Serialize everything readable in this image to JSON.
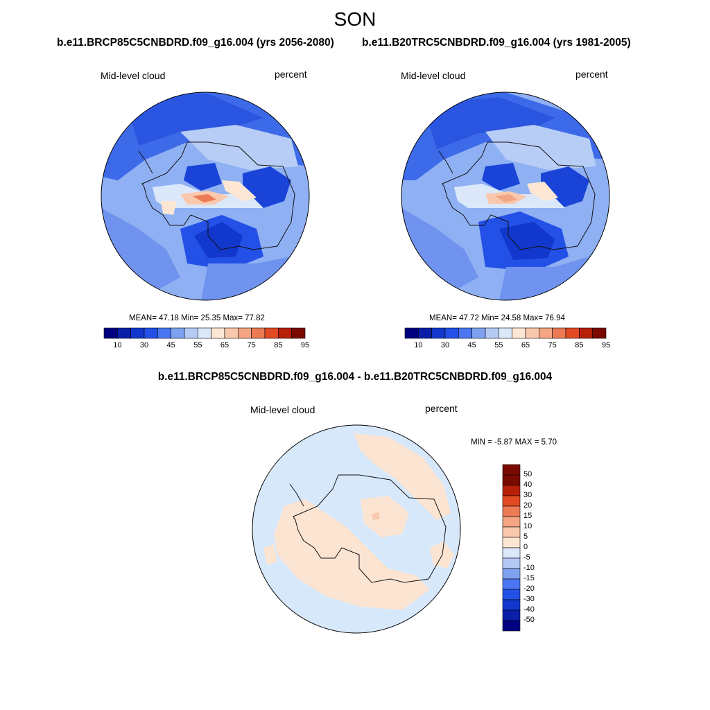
{
  "figure": {
    "season": "SON",
    "case_left": "b.e11.BRCP85C5CNBDRD.f09_g16.004 (yrs 2056-2080)",
    "case_right": "b.e11.B20TRC5CNBDRD.f09_g16.004 (yrs 1981-2005)",
    "diff_title": "b.e11.BRCP85C5CNBDRD.f09_g16.004 - b.e11.B20TRC5CNBDRD.f09_g16.004"
  },
  "panels": [
    {
      "variable": "Mid-level cloud",
      "units": "percent",
      "stats": "MEAN=  47.18  Min=  25.35  Max=  77.82",
      "colorbar_ticks": [
        "10",
        "30",
        "45",
        "55",
        "65",
        "75",
        "85",
        "95"
      ]
    },
    {
      "variable": "Mid-level cloud",
      "units": "percent",
      "stats": "MEAN=  47.72  Min=  24.58  Max=  76.94",
      "colorbar_ticks": [
        "10",
        "30",
        "45",
        "55",
        "65",
        "75",
        "85",
        "95"
      ]
    },
    {
      "variable": "Mid-level cloud",
      "units": "percent",
      "stats": "MIN =  -5.87 MAX =   5.70",
      "colorbar_ticks": [
        "50",
        "40",
        "30",
        "20",
        "15",
        "10",
        "5",
        "0",
        "-5",
        "-10",
        "-15",
        "-20",
        "-30",
        "-40",
        "-50"
      ]
    }
  ],
  "colors": {
    "abs_scale": [
      "#000080",
      "#0a1fa8",
      "#1237cc",
      "#2350e6",
      "#4a76f2",
      "#7fa2f0",
      "#b4c9f4",
      "#dbe8fa",
      "#fde7d4",
      "#f9c8ad",
      "#f3a584",
      "#ec7a55",
      "#e14a22",
      "#b61f08",
      "#7a0a00"
    ],
    "diff_scale": [
      "#000080",
      "#0a1fa8",
      "#1237cc",
      "#2350e6",
      "#4a76f2",
      "#7fa2f0",
      "#b4c9f4",
      "#dbe8fa",
      "#fde7d4",
      "#f9c8ad",
      "#f3a584",
      "#ec7a55",
      "#e14a22",
      "#b61f08",
      "#7a0a00",
      "#7a0a00"
    ],
    "map_ocean_abs": "#8fb0f3",
    "map_diff_base": "#d8e8fb",
    "map_diff_pos": "#fbe4d2"
  }
}
